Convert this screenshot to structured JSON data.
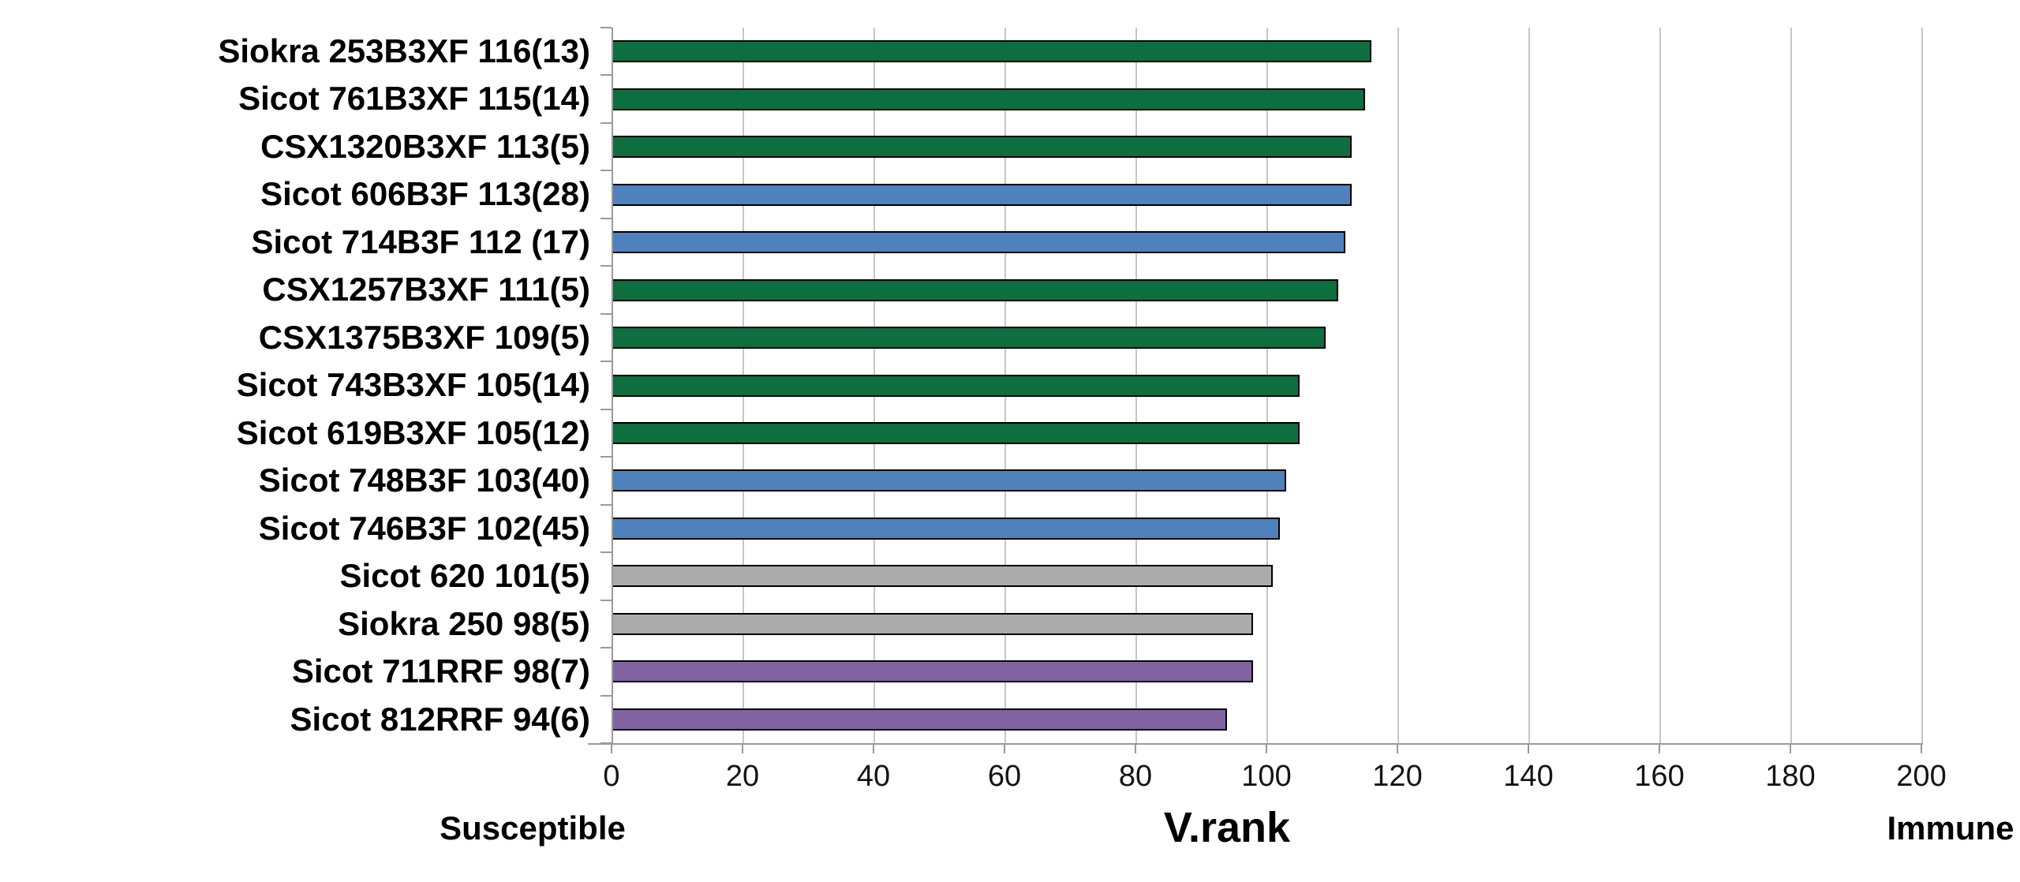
{
  "chart_data": {
    "type": "bar",
    "orientation": "horizontal",
    "xlabel": "V.rank",
    "axis_left_annotation": "Susceptible",
    "axis_right_annotation": "Immune",
    "xlim": [
      0,
      200
    ],
    "xticks": [
      0,
      20,
      40,
      60,
      80,
      100,
      120,
      140,
      160,
      180,
      200
    ],
    "grid": "vertical",
    "legend": "none",
    "categories": [
      "Siokra 253B3XF 116(13)",
      "Sicot 761B3XF 115(14)",
      "CSX1320B3XF 113(5)",
      "Sicot 606B3F 113(28)",
      "Sicot 714B3F 112 (17)",
      "CSX1257B3XF 111(5)",
      "CSX1375B3XF 109(5)",
      "Sicot 743B3XF 105(14)",
      "Sicot 619B3XF 105(12)",
      "Sicot 748B3F 103(40)",
      "Sicot 746B3F 102(45)",
      "Sicot 620 101(5)",
      "Siokra 250 98(5)",
      "Sicot 711RRF 98(7)",
      "Sicot 812RRF 94(6)"
    ],
    "values": [
      116,
      115,
      113,
      113,
      112,
      111,
      109,
      105,
      105,
      103,
      102,
      101,
      98,
      98,
      94
    ],
    "bar_colors": [
      "#0d6e3f",
      "#0d6e3f",
      "#0d6e3f",
      "#4f81bd",
      "#4f81bd",
      "#0d6e3f",
      "#0d6e3f",
      "#0d6e3f",
      "#0d6e3f",
      "#4f81bd",
      "#4f81bd",
      "#ababab",
      "#ababab",
      "#8064a2",
      "#8064a2"
    ],
    "bar_border_color": "#000000",
    "colors": {
      "green": "#0d6e3f",
      "blue": "#4f81bd",
      "gray": "#ababab",
      "purple": "#8064a2"
    }
  }
}
